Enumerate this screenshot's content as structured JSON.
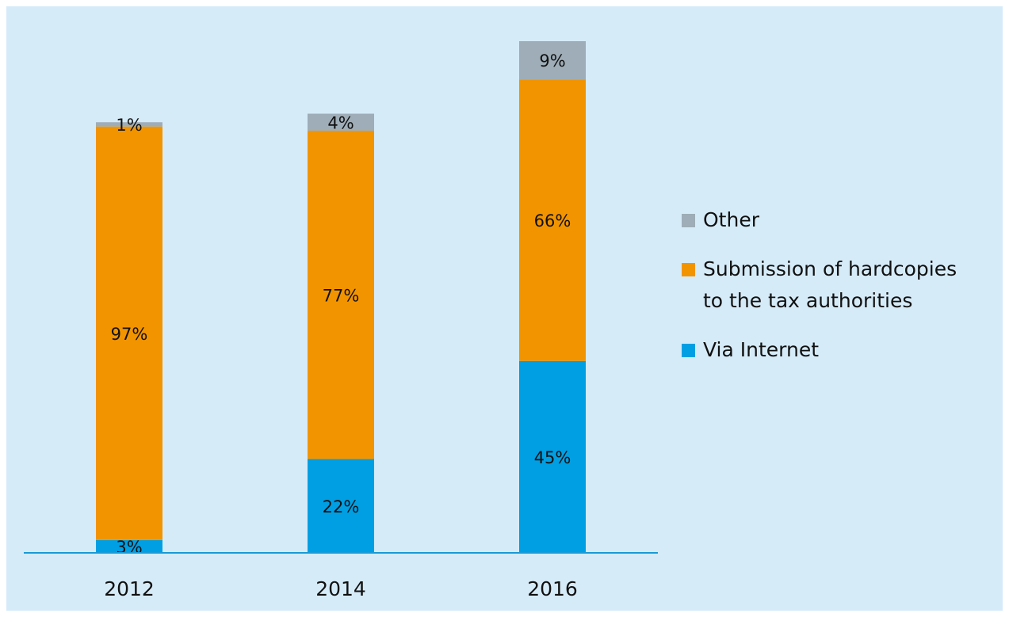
{
  "chart_data": {
    "type": "stacked_bar",
    "categories": [
      "2012",
      "2014",
      "2016"
    ],
    "series": [
      {
        "name": "Via Internet",
        "color": "#009fe3",
        "values": [
          3,
          22,
          45
        ],
        "value_labels": [
          "3%",
          "22%",
          "45%"
        ]
      },
      {
        "name": "Submission of hardcopies to the tax authorities",
        "color": "#f29400",
        "values": [
          97,
          77,
          66
        ],
        "value_labels": [
          "97%",
          "77%",
          "66%"
        ]
      },
      {
        "name": "Other",
        "color": "#9eadb7",
        "values": [
          1,
          4,
          9
        ],
        "value_labels": [
          "1%",
          "4%",
          "9%"
        ]
      }
    ],
    "legend": "right"
  }
}
